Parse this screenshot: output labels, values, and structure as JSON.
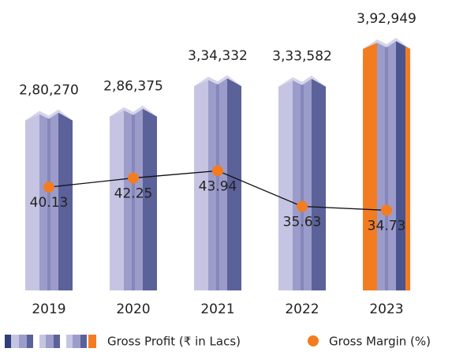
{
  "chart_data": {
    "type": "bar_line",
    "categories": [
      "2019",
      "2020",
      "2021",
      "2022",
      "2023"
    ],
    "series": [
      {
        "name": "Gross Profit (₹ in Lacs)",
        "type": "bar",
        "color": "#9c9ccb",
        "values": [
          280270,
          286375,
          334332,
          333582,
          392949
        ],
        "value_labels": [
          "2,80,270",
          "2,86,375",
          "3,34,332",
          "3,33,582",
          "3,92,949"
        ]
      },
      {
        "name": "Gross Margin (%)",
        "type": "line",
        "axis": "y2",
        "color": "#f47c20",
        "values": [
          40.13,
          42.25,
          43.94,
          35.63,
          34.73
        ]
      }
    ]
  }
}
